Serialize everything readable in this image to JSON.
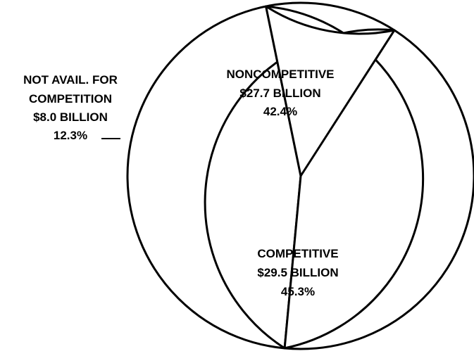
{
  "chart_data": {
    "type": "pie",
    "title": "",
    "slices": [
      {
        "label": "NONCOMPETITIVE",
        "amount": "$27.7 BILLION",
        "value_billion": 27.7,
        "percent_text": "42.4%",
        "percent": 42.4
      },
      {
        "label": "COMPETITIVE",
        "amount": "$29.5 BILLION",
        "value_billion": 29.5,
        "percent_text": "45.3%",
        "percent": 45.3
      },
      {
        "label_lines": [
          "NOT AVAIL. FOR",
          "COMPETITION"
        ],
        "amount": "$8.0 BILLION",
        "value_billion": 8.0,
        "percent_text": "12.3%",
        "percent": 12.3
      }
    ],
    "colors": {
      "fill": "#ffffff",
      "stroke": "#000000",
      "text": "#000000"
    }
  }
}
